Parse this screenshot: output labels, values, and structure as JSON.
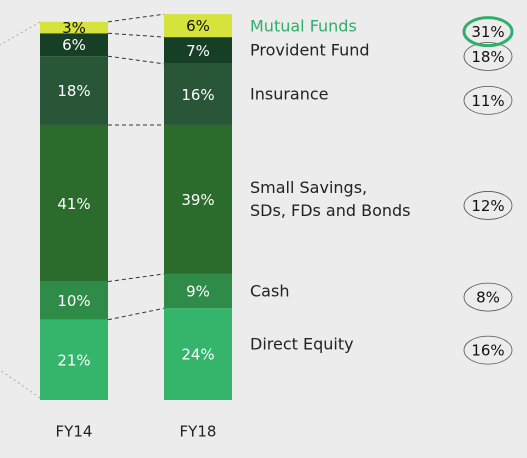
{
  "chart_data": {
    "type": "stacked_bar",
    "categories": [
      "FY14",
      "FY18"
    ],
    "ylim": [
      0,
      100
    ],
    "series": [
      {
        "name": "Direct Equity",
        "color": "#34b56b",
        "values": [
          21,
          24
        ],
        "value_labels": [
          "21%",
          "24%"
        ],
        "rate": 16,
        "rate_label": "16%"
      },
      {
        "name": "Cash",
        "color": "#2f8c48",
        "values": [
          10,
          9
        ],
        "value_labels": [
          "10%",
          "9%"
        ],
        "rate": 8,
        "rate_label": "8%"
      },
      {
        "name": "Small Savings,\nSDs, FDs and Bonds",
        "color": "#2b6b2b",
        "values": [
          41,
          39
        ],
        "value_labels": [
          "41%",
          "39%"
        ],
        "rate": 12,
        "rate_label": "12%"
      },
      {
        "name": "Insurance",
        "color": "#285636",
        "values": [
          18,
          16
        ],
        "value_labels": [
          "18%",
          "16%"
        ],
        "rate": 11,
        "rate_label": "11%"
      },
      {
        "name": "Provident Fund",
        "color": "#163f25",
        "values": [
          6,
          7
        ],
        "value_labels": [
          "6%",
          "7%"
        ],
        "rate": 18,
        "rate_label": "18%"
      },
      {
        "name": "Mutual Funds",
        "color": "#d5e33b",
        "values": [
          3,
          6
        ],
        "value_labels": [
          "3%",
          "6%"
        ],
        "rate": 31,
        "rate_label": "31%",
        "highlight": "#2fae6c"
      }
    ]
  }
}
